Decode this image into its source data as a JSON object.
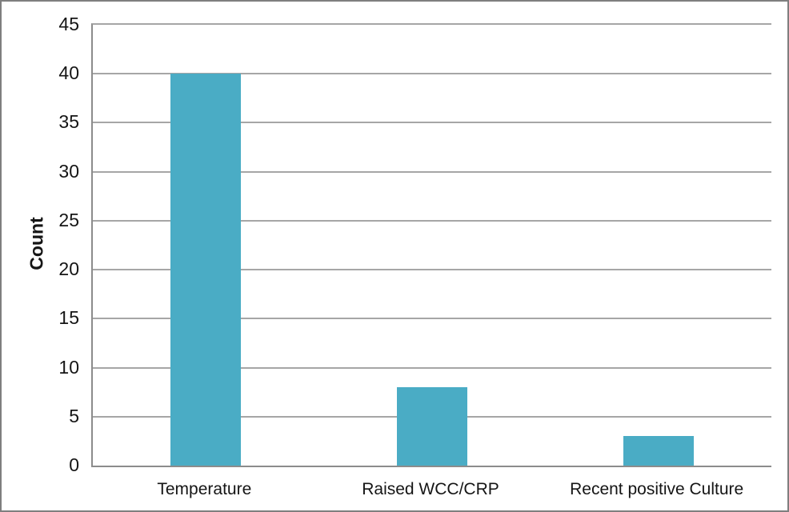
{
  "chart_data": {
    "type": "bar",
    "title": "",
    "xlabel": "",
    "ylabel": "Count",
    "categories": [
      "Temperature",
      "Raised WCC/CRP",
      "Recent positive Culture"
    ],
    "values": [
      40,
      8,
      3
    ],
    "ylim": [
      0,
      45
    ],
    "yticks": [
      0,
      5,
      10,
      15,
      20,
      25,
      30,
      35,
      40,
      45
    ],
    "grid": true,
    "legend_position": "none",
    "bar_color": "#4aacc5",
    "gridline_color": "#a6a6a6",
    "axis_line_color": "#8c8c8c",
    "frame_color": "#7f7f7f",
    "text_color": "#151515",
    "background_color": "#ffffff"
  }
}
